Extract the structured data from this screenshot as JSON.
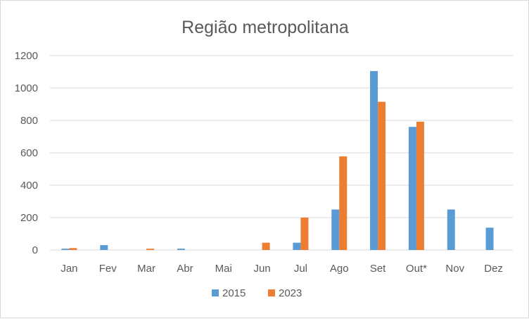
{
  "chart_data": {
    "type": "bar",
    "title": "Região metropolitana",
    "xlabel": "",
    "ylabel": "",
    "ylim": [
      0,
      1200
    ],
    "yticks": [
      0,
      200,
      400,
      600,
      800,
      1000,
      1200
    ],
    "grid": true,
    "legend_position": "bottom",
    "categories": [
      "Jan",
      "Fev",
      "Mar",
      "Abr",
      "Mai",
      "Jun",
      "Jul",
      "Ago",
      "Set",
      "Out*",
      "Nov",
      "Dez"
    ],
    "series": [
      {
        "name": "2015",
        "color": "#5b9bd5",
        "values": [
          8,
          30,
          0,
          8,
          0,
          0,
          45,
          250,
          1105,
          760,
          250,
          138
        ]
      },
      {
        "name": "2023",
        "color": "#ed7d31",
        "values": [
          12,
          0,
          8,
          0,
          0,
          45,
          200,
          578,
          915,
          792,
          0,
          0
        ]
      }
    ]
  }
}
